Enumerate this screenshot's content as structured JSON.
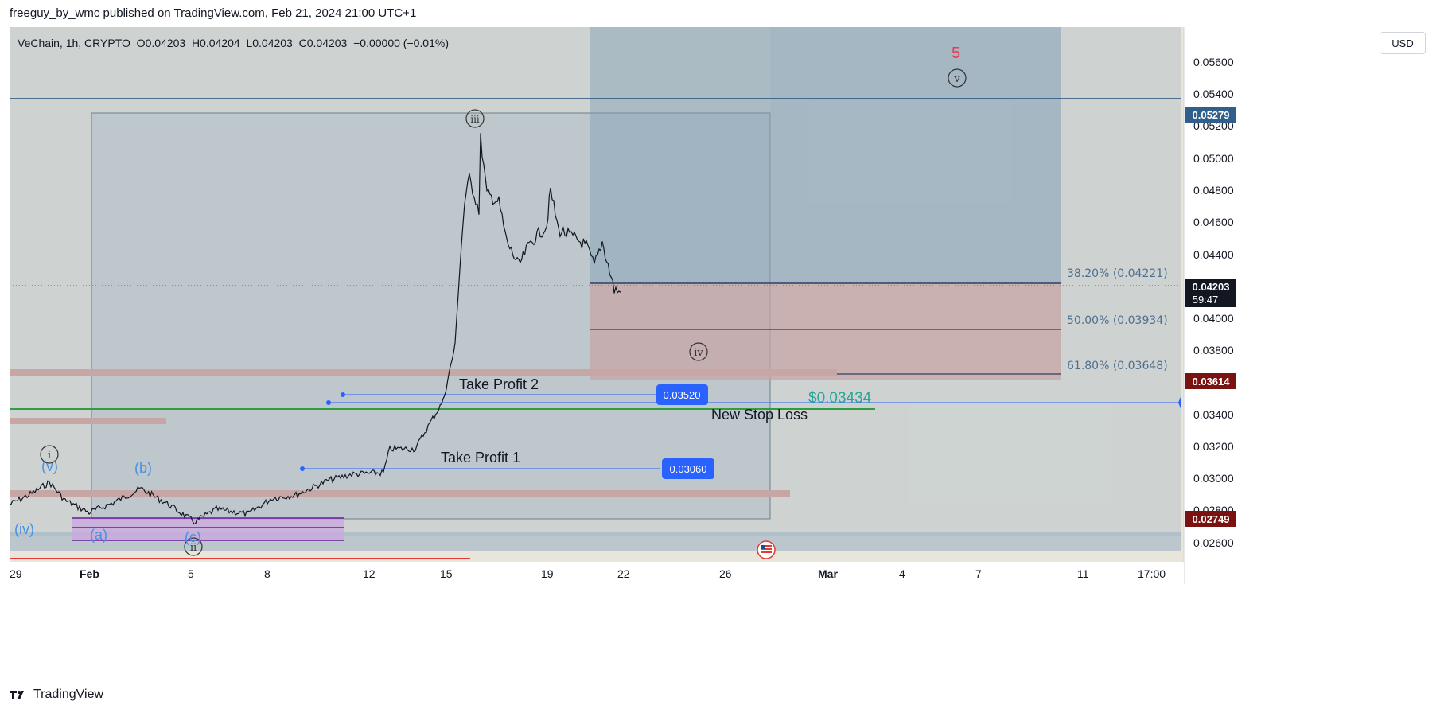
{
  "header": {
    "published_by": "freeguy_by_wmc published on TradingView.com, Feb 21, 2024 21:00 UTC+1"
  },
  "symbol": {
    "line": "VeChain, 1h, CRYPTO  O0.04203  H0.04204  L0.04203  C0.04203  −0.00000 (−0.01%)"
  },
  "currency_button": "USD",
  "footer": {
    "brand": "TradingView"
  },
  "price_axis": {
    "ticks": [
      "0.05600",
      "0.05400",
      "0.05200",
      "0.05000",
      "0.04800",
      "0.04600",
      "0.04400",
      "0.04000",
      "0.03800",
      "0.03400",
      "0.03200",
      "0.03000",
      "0.02800",
      "0.02600"
    ],
    "badges": [
      {
        "text": "0.05279",
        "color": "#2f5f8a"
      },
      {
        "text": "0.04203",
        "color": "#131722"
      },
      {
        "text": "59:47",
        "color": "#131722"
      },
      {
        "text": "0.03614",
        "color": "#7a1212"
      },
      {
        "text": "0.02749",
        "color": "#7a1212"
      }
    ]
  },
  "time_axis": {
    "ticks": [
      "29",
      "Feb",
      "5",
      "8",
      "12",
      "15",
      "19",
      "22",
      "26",
      "Mar",
      "4",
      "7",
      "11",
      "17:00"
    ]
  },
  "fib_levels": [
    {
      "label": "38.20% (0.04221)"
    },
    {
      "label": "50.00% (0.03934)"
    },
    {
      "label": "61.80% (0.03648)"
    }
  ],
  "annotations": {
    "take_profit_2": "Take Profit 2",
    "take_profit_1": "Take Profit 1",
    "new_stop_loss": "New Stop Loss",
    "stop_price": "$0.03434",
    "tp2_price": "0.03520",
    "tp1_price": "0.03060",
    "wave_5": "5"
  },
  "wave_labels": {
    "i": "i",
    "ii": "ii",
    "iii": "iii",
    "iv": "iv",
    "v": "v",
    "blue_v": "(v)",
    "blue_b": "(b)",
    "blue_iv": "(iv)",
    "blue_a": "(a)",
    "blue_c": "(c)"
  },
  "colors": {
    "chart_bg": "#e8e5db",
    "blue_zone": "#9db3c2",
    "red_zone": "#c7a6a6",
    "accent_blue": "#2962ff",
    "stop_green": "#26a69a",
    "candles": "#131722"
  }
}
